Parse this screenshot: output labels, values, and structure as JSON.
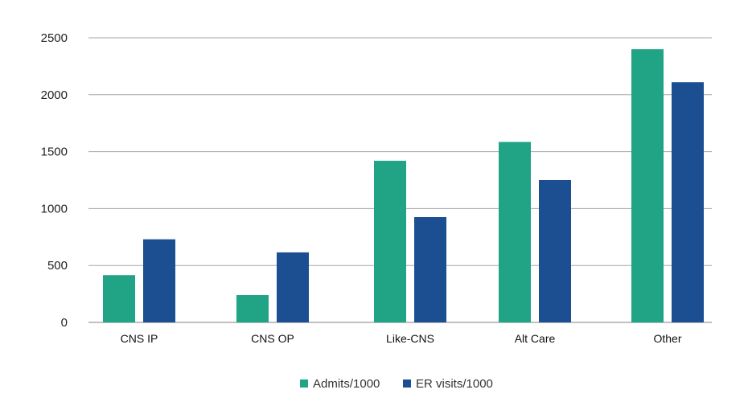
{
  "chart_data": {
    "type": "bar",
    "categories": [
      "CNS IP",
      "CNS OP",
      "Like-CNS",
      "Alt Care",
      "Other"
    ],
    "series": [
      {
        "name": "Admits/1000",
        "color": "#21a386",
        "values": [
          415,
          240,
          1420,
          1585,
          2400
        ]
      },
      {
        "name": "ER visits/1000",
        "color": "#1c4f91",
        "values": [
          730,
          615,
          925,
          1250,
          2110
        ]
      }
    ],
    "ylim": [
      0,
      2500
    ],
    "yticks": [
      0,
      500,
      1000,
      1500,
      2000,
      2500
    ],
    "grid": true,
    "legend": "bottom-center",
    "gridline_color": "#a6a6a6"
  }
}
